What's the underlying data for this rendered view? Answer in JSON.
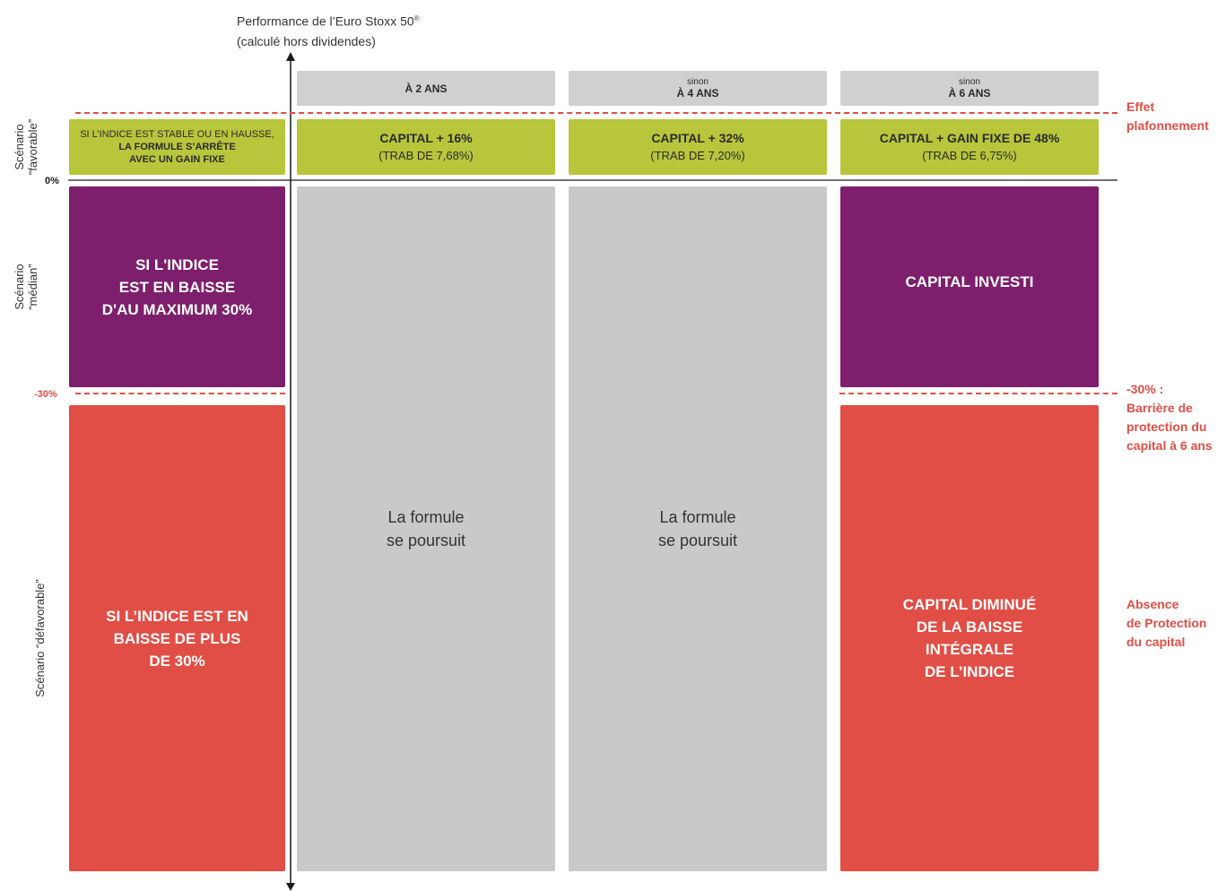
{
  "axis": {
    "title_line1": "Performance de l’Euro Stoxx 50",
    "title_sup": "®",
    "title_line2": "(calculé hors dividendes)",
    "zero_label": "0%",
    "barrier_label": "-30%"
  },
  "scenarios": {
    "favorable": [
      "Scénario",
      "“favorable”"
    ],
    "median": [
      "Scénario",
      "“médian”"
    ],
    "defavorable": "Scénario “défavorable”"
  },
  "columns": [
    {
      "pre": "",
      "title": "À 2 ANS"
    },
    {
      "pre": "sinon",
      "title": "À 4 ANS"
    },
    {
      "pre": "sinon",
      "title": "À 6 ANS"
    }
  ],
  "condition_row": {
    "favorable": [
      "SI L’INDICE EST STABLE OU EN HAUSSE,",
      "LA FORMULE S’ARRÊTE",
      "AVEC UN GAIN FIXE"
    ],
    "median": [
      "SI L'INDICE",
      "EST EN BAISSE",
      "D'AU MAXIMUM 30%"
    ],
    "defavorable": [
      "SI L’INDICE EST EN",
      "BAISSE DE PLUS",
      "DE 30%"
    ]
  },
  "gains": [
    {
      "main": "CAPITAL + 16%",
      "sub": "(TRAB DE 7,68%)"
    },
    {
      "main": "CAPITAL + 32%",
      "sub": "(TRAB DE 7,20%)"
    },
    {
      "main": "CAPITAL + GAIN FIXE DE 48%",
      "sub": "(TRAB DE 6,75%)"
    }
  ],
  "continue_text": [
    "La formule",
    "se poursuit"
  ],
  "final_median": "CAPITAL INVESTI",
  "final_defavorable": [
    "CAPITAL DIMINUÉ",
    "DE LA BAISSE",
    "INTÉGRALE",
    "DE L’INDICE"
  ],
  "right_notes": {
    "cap": [
      "Effet",
      "plafonnement"
    ],
    "barrier": [
      "-30% :",
      "Barrière de",
      "protection du",
      "capital à 6 ans"
    ],
    "absence": [
      "Absence",
      "de Protection",
      "du capital"
    ]
  },
  "colors": {
    "green": "#b7c63a",
    "purple": "#7d1f6c",
    "red": "#e04e45",
    "grey": "#c9c9c9"
  }
}
